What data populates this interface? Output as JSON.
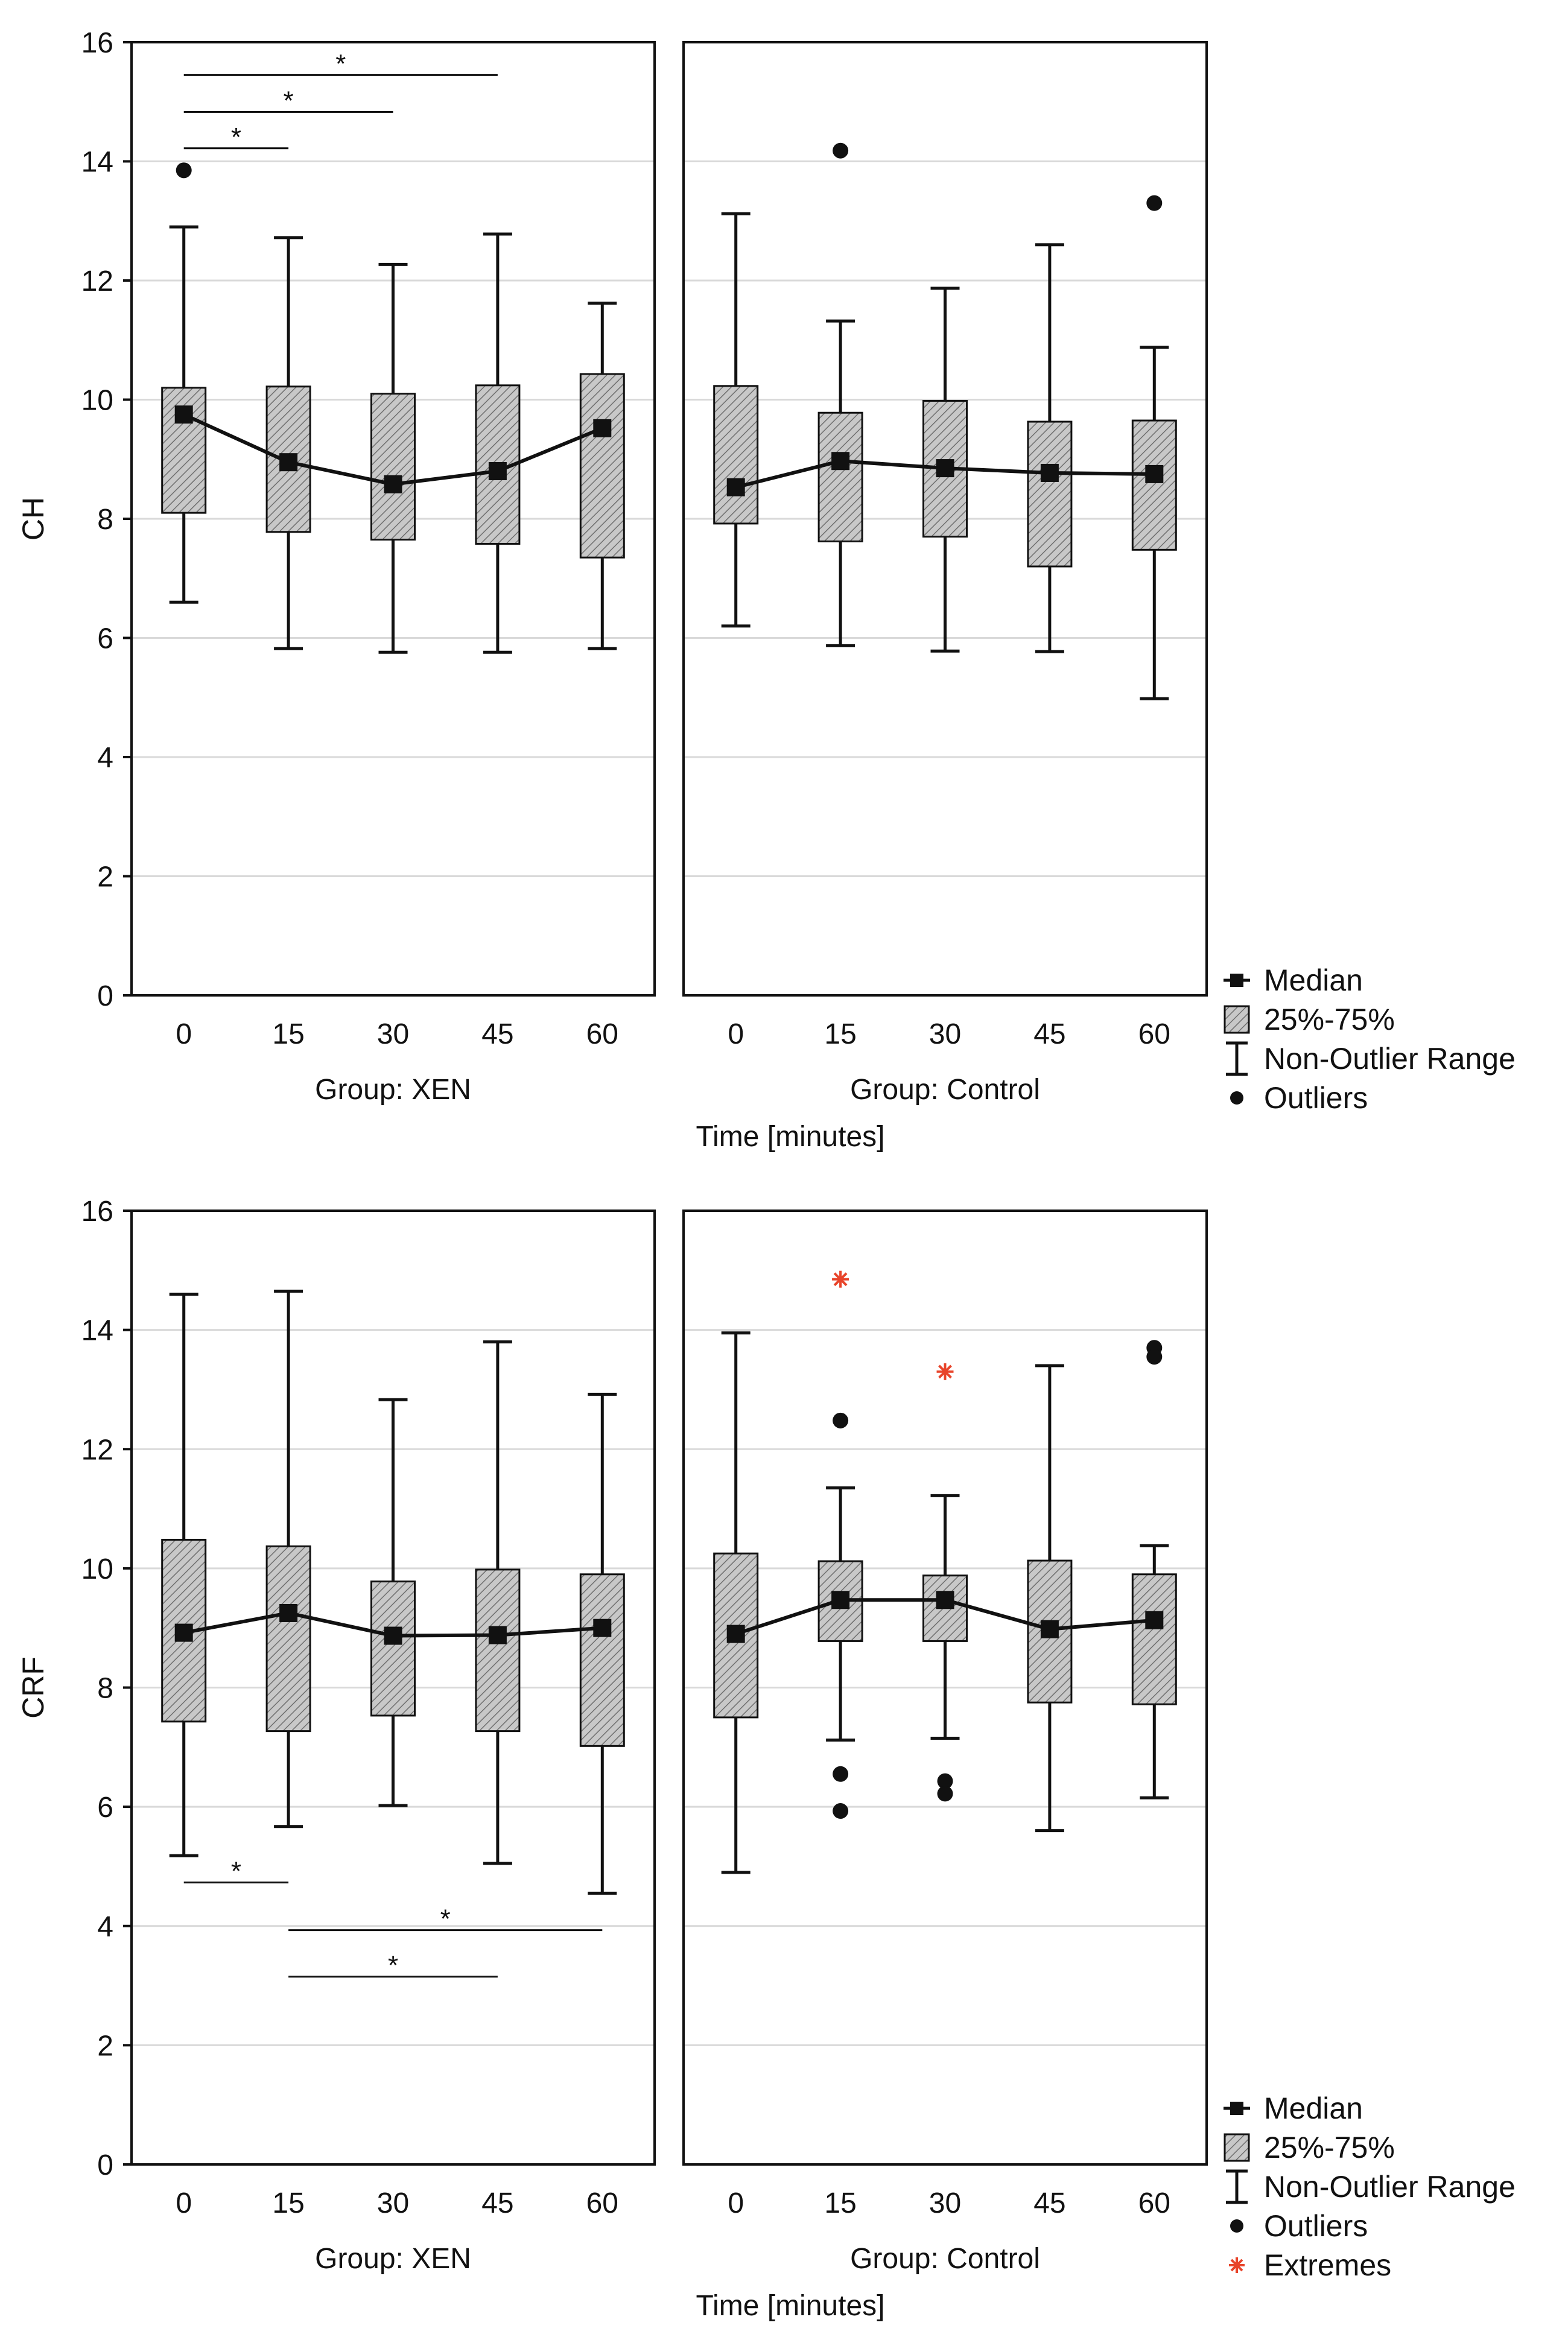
{
  "chart_data": [
    {
      "type": "boxplot",
      "ylabel": "CH",
      "xlabel": "Time [minutes]",
      "ylim": [
        0,
        16
      ],
      "yticks": [
        "0",
        "2",
        "4",
        "6",
        "8",
        "10",
        "12",
        "14",
        "16"
      ],
      "categories": [
        "0",
        "15",
        "30",
        "45",
        "60"
      ],
      "grid": true,
      "panels": [
        {
          "label": "Group: XEN",
          "boxes": [
            {
              "x": "0",
              "median": 9.75,
              "q1": 8.1,
              "q3": 10.2,
              "whisker_low": 6.6,
              "whisker_high": 12.9,
              "outliers": [
                13.85
              ],
              "extremes": []
            },
            {
              "x": "15",
              "median": 8.95,
              "q1": 7.78,
              "q3": 10.22,
              "whisker_low": 5.82,
              "whisker_high": 12.72,
              "outliers": [],
              "extremes": []
            },
            {
              "x": "30",
              "median": 8.58,
              "q1": 7.65,
              "q3": 10.1,
              "whisker_low": 5.76,
              "whisker_high": 12.27,
              "outliers": [],
              "extremes": []
            },
            {
              "x": "45",
              "median": 8.8,
              "q1": 7.58,
              "q3": 10.24,
              "whisker_low": 5.76,
              "whisker_high": 12.78,
              "outliers": [],
              "extremes": []
            },
            {
              "x": "60",
              "median": 9.52,
              "q1": 7.35,
              "q3": 10.43,
              "whisker_low": 5.82,
              "whisker_high": 11.62,
              "outliers": [],
              "extremes": []
            }
          ],
          "significance": [
            {
              "from": "0",
              "to": "45",
              "y": 15.45,
              "label": "*"
            },
            {
              "from": "0",
              "to": "30",
              "y": 14.83,
              "label": "*"
            },
            {
              "from": "0",
              "to": "15",
              "y": 14.22,
              "label": "*"
            }
          ]
        },
        {
          "label": "Group: Control",
          "boxes": [
            {
              "x": "0",
              "median": 8.53,
              "q1": 7.92,
              "q3": 10.23,
              "whisker_low": 6.2,
              "whisker_high": 13.12,
              "outliers": [],
              "extremes": []
            },
            {
              "x": "15",
              "median": 8.97,
              "q1": 7.62,
              "q3": 9.78,
              "whisker_low": 5.87,
              "whisker_high": 11.32,
              "outliers": [
                14.18
              ],
              "extremes": []
            },
            {
              "x": "30",
              "median": 8.85,
              "q1": 7.7,
              "q3": 9.98,
              "whisker_low": 5.78,
              "whisker_high": 11.87,
              "outliers": [],
              "extremes": []
            },
            {
              "x": "45",
              "median": 8.77,
              "q1": 7.2,
              "q3": 9.63,
              "whisker_low": 5.77,
              "whisker_high": 12.6,
              "outliers": [],
              "extremes": []
            },
            {
              "x": "60",
              "median": 8.75,
              "q1": 7.48,
              "q3": 9.65,
              "whisker_low": 4.98,
              "whisker_high": 10.88,
              "outliers": [
                13.3
              ],
              "extremes": []
            }
          ],
          "significance": []
        }
      ],
      "legend": {
        "position": "right",
        "entries": [
          "Median",
          "25%-75%",
          "Non-Outlier Range",
          "Outliers"
        ]
      }
    },
    {
      "type": "boxplot",
      "ylabel": "CRF",
      "xlabel": "Time [minutes]",
      "ylim": [
        0,
        16
      ],
      "yticks": [
        "0",
        "2",
        "4",
        "6",
        "8",
        "10",
        "12",
        "14",
        "16"
      ],
      "categories": [
        "0",
        "15",
        "30",
        "45",
        "60"
      ],
      "grid": true,
      "panels": [
        {
          "label": "Group: XEN",
          "boxes": [
            {
              "x": "0",
              "median": 8.92,
              "q1": 7.43,
              "q3": 10.48,
              "whisker_low": 5.18,
              "whisker_high": 14.6,
              "outliers": [],
              "extremes": []
            },
            {
              "x": "15",
              "median": 9.25,
              "q1": 7.27,
              "q3": 10.37,
              "whisker_low": 5.67,
              "whisker_high": 14.65,
              "outliers": [],
              "extremes": []
            },
            {
              "x": "30",
              "median": 8.87,
              "q1": 7.53,
              "q3": 9.78,
              "whisker_low": 6.02,
              "whisker_high": 12.83,
              "outliers": [],
              "extremes": []
            },
            {
              "x": "45",
              "median": 8.88,
              "q1": 7.27,
              "q3": 9.98,
              "whisker_low": 5.05,
              "whisker_high": 13.8,
              "outliers": [],
              "extremes": []
            },
            {
              "x": "60",
              "median": 9.0,
              "q1": 7.02,
              "q3": 9.9,
              "whisker_low": 4.55,
              "whisker_high": 12.92,
              "outliers": [],
              "extremes": []
            }
          ],
          "significance": [
            {
              "from": "0",
              "to": "15",
              "y": 4.73,
              "label": "*"
            },
            {
              "from": "15",
              "to": "60",
              "y": 3.93,
              "label": "*"
            },
            {
              "from": "15",
              "to": "45",
              "y": 3.15,
              "label": "*"
            }
          ]
        },
        {
          "label": "Group: Control",
          "boxes": [
            {
              "x": "0",
              "median": 8.9,
              "q1": 7.5,
              "q3": 10.25,
              "whisker_low": 4.9,
              "whisker_high": 13.95,
              "outliers": [],
              "extremes": []
            },
            {
              "x": "15",
              "median": 9.47,
              "q1": 8.78,
              "q3": 10.12,
              "whisker_low": 7.12,
              "whisker_high": 11.35,
              "outliers": [
                12.48,
                6.55,
                5.93
              ],
              "extremes": [
                14.85
              ]
            },
            {
              "x": "30",
              "median": 9.47,
              "q1": 8.78,
              "q3": 9.88,
              "whisker_low": 7.15,
              "whisker_high": 11.22,
              "outliers": [
                6.43,
                6.22
              ],
              "extremes": [
                13.3
              ]
            },
            {
              "x": "45",
              "median": 8.98,
              "q1": 7.75,
              "q3": 10.13,
              "whisker_low": 5.6,
              "whisker_high": 13.4,
              "outliers": [],
              "extremes": []
            },
            {
              "x": "60",
              "median": 9.13,
              "q1": 7.72,
              "q3": 9.9,
              "whisker_low": 6.15,
              "whisker_high": 10.38,
              "outliers": [
                13.7,
                13.55
              ],
              "extremes": []
            }
          ],
          "significance": []
        }
      ],
      "legend": {
        "position": "right",
        "entries": [
          "Median",
          "25%-75%",
          "Non-Outlier Range",
          "Outliers",
          "Extremes"
        ]
      }
    }
  ],
  "colors": {
    "box_fill": "#c8c8c8",
    "hatch": "#707070",
    "line": "#111111",
    "grid": "#d9d9d9",
    "extreme": "#e8442a"
  }
}
